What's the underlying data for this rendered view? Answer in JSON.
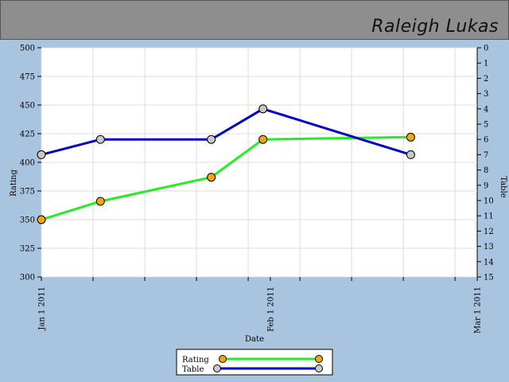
{
  "header": {
    "player_name": "Raleigh Lukas"
  },
  "chart_data": {
    "type": "line",
    "xlabel": "Date",
    "ylabel_left": "Rating",
    "ylabel_right": "Table",
    "x_ticks": [
      "Jan 1 2011",
      "Feb 1 2011",
      "Mar 1 2011"
    ],
    "x_range": [
      "2011-01-01",
      "2011-03-01"
    ],
    "left_axis": {
      "min": 300,
      "max": 500,
      "step": 25,
      "ticks": [
        "300",
        "325",
        "350",
        "375",
        "400",
        "425",
        "450",
        "475",
        "500"
      ]
    },
    "right_axis": {
      "min": 0,
      "max": 15,
      "step": 1,
      "inverted": true,
      "ticks": [
        "0",
        "1",
        "2",
        "3",
        "4",
        "5",
        "6",
        "7",
        "8",
        "9",
        "10",
        "11",
        "12",
        "13",
        "14",
        "15"
      ]
    },
    "grid": true,
    "legend_position": "bottom-center",
    "series": [
      {
        "name": "Rating",
        "axis": "left",
        "color": "#22ee22",
        "marker_color": "#f5a800",
        "points": [
          {
            "x": "2011-01-01",
            "y": 350
          },
          {
            "x": "2011-01-09",
            "y": 366
          },
          {
            "x": "2011-01-24",
            "y": 387
          },
          {
            "x": "2011-01-31",
            "y": 420
          },
          {
            "x": "2011-02-20",
            "y": 422
          }
        ]
      },
      {
        "name": "Table",
        "axis": "right",
        "color": "#0000cc",
        "marker_color": "#c8c8c8",
        "points": [
          {
            "x": "2011-01-01",
            "y": 7
          },
          {
            "x": "2011-01-09",
            "y": 6
          },
          {
            "x": "2011-01-24",
            "y": 6
          },
          {
            "x": "2011-01-31",
            "y": 4
          },
          {
            "x": "2011-02-20",
            "y": 7
          }
        ]
      }
    ]
  }
}
